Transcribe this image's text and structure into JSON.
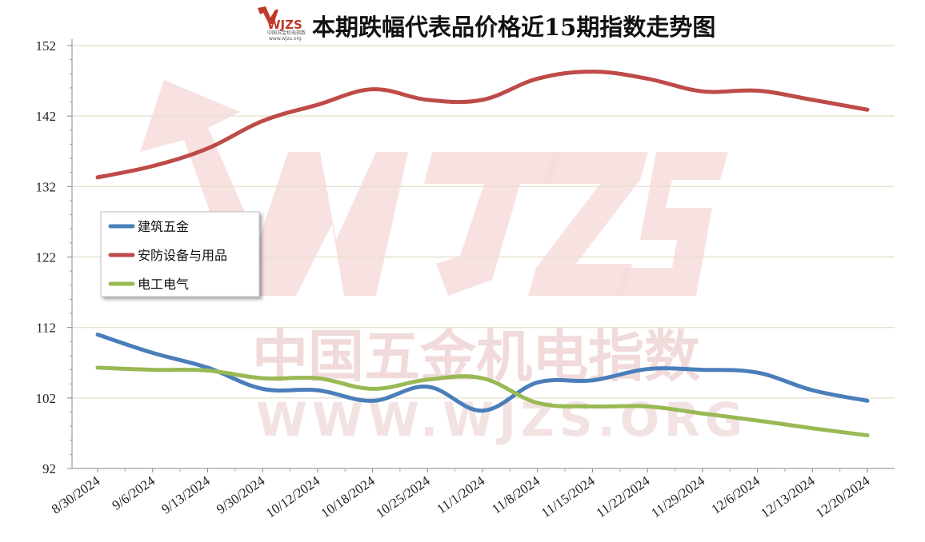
{
  "title": "本期跌幅代表品价格近15期指数走势图",
  "logo": {
    "text": "WJZS",
    "subtitle": "中国五金机电指数",
    "url": "www.wjzs.org"
  },
  "watermark": {
    "text_cn": "中国五金机电指数",
    "text_en": "WWW.WJZS.ORG"
  },
  "chart_data": {
    "type": "line",
    "title": "本期跌幅代表品价格近15期指数走势图",
    "xlabel": "",
    "ylabel": "",
    "categories": [
      "8/30/2024",
      "9/6/2024",
      "9/13/2024",
      "9/30/2024",
      "10/12/2024",
      "10/18/2024",
      "10/25/2024",
      "11/1/2024",
      "11/8/2024",
      "11/15/2024",
      "11/22/2024",
      "11/29/2024",
      "12/6/2024",
      "12/13/2024",
      "12/20/2024"
    ],
    "ylim": [
      92,
      152
    ],
    "yticks": [
      92,
      102,
      112,
      122,
      132,
      142,
      152
    ],
    "grid": true,
    "legend_position": "left-middle",
    "series": [
      {
        "name": "建筑五金",
        "color": "#4a7ebb",
        "values": [
          111.0,
          108.4,
          106.3,
          103.3,
          103.1,
          101.6,
          103.6,
          100.2,
          104.2,
          104.5,
          106.1,
          106.0,
          105.6,
          103.1,
          101.6
        ]
      },
      {
        "name": "安防设备与用品",
        "color": "#be4b48",
        "values": [
          133.3,
          134.9,
          137.4,
          141.3,
          143.6,
          145.8,
          144.3,
          144.3,
          147.3,
          148.3,
          147.3,
          145.5,
          145.6,
          144.3,
          142.9
        ]
      },
      {
        "name": "电工电气",
        "color": "#98b954",
        "values": [
          106.3,
          106.0,
          105.9,
          104.8,
          104.8,
          103.3,
          104.6,
          104.8,
          101.3,
          100.8,
          100.8,
          99.8,
          98.8,
          97.7,
          96.7
        ]
      }
    ]
  }
}
